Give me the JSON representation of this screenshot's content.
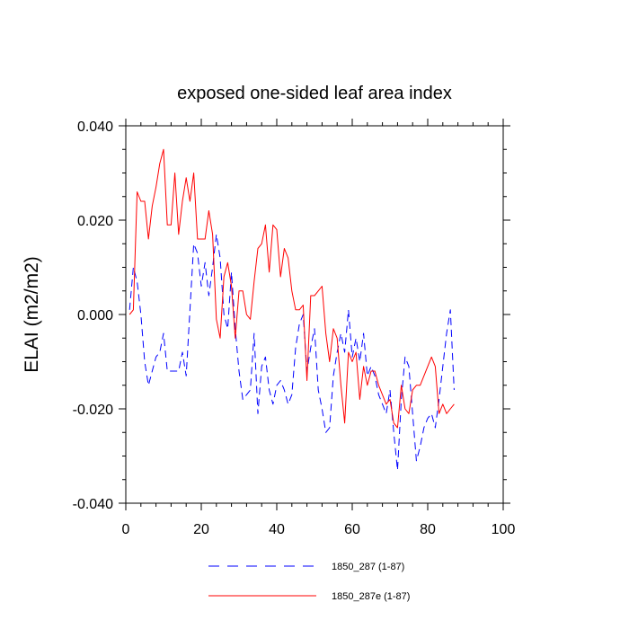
{
  "chart_data": {
    "type": "line",
    "title": "exposed one-sided leaf area index",
    "xlabel": "",
    "ylabel": "ELAI  (m2/m2)",
    "xlim": [
      0,
      100
    ],
    "ylim": [
      -0.04,
      0.04
    ],
    "xticks": [
      0,
      20,
      40,
      60,
      80,
      100
    ],
    "xtick_labels": [
      "0",
      "20",
      "40",
      "60",
      "80",
      "100"
    ],
    "yticks": [
      -0.04,
      -0.02,
      0.0,
      0.02,
      0.04
    ],
    "ytick_labels": [
      "-0.040",
      "-0.020",
      "0.000",
      "0.020",
      "0.040"
    ],
    "legend_position": "bottom-center",
    "series": [
      {
        "name": "1850_287 (1-87)",
        "color": "#0000ff",
        "style": "dashed",
        "x": [
          1,
          2,
          3,
          4,
          5,
          6,
          7,
          8,
          9,
          10,
          11,
          12,
          13,
          14,
          15,
          16,
          17,
          18,
          19,
          20,
          21,
          22,
          23,
          24,
          25,
          26,
          27,
          28,
          29,
          30,
          31,
          32,
          33,
          34,
          35,
          36,
          37,
          38,
          39,
          40,
          41,
          42,
          43,
          44,
          45,
          46,
          47,
          48,
          49,
          50,
          51,
          52,
          53,
          54,
          55,
          56,
          57,
          58,
          59,
          60,
          61,
          62,
          63,
          64,
          65,
          66,
          67,
          68,
          69,
          70,
          71,
          72,
          73,
          74,
          75,
          76,
          77,
          78,
          79,
          80,
          81,
          82,
          83,
          84,
          85,
          86,
          87
        ],
        "values": [
          0.001,
          0.01,
          0.007,
          0.0,
          -0.01,
          -0.015,
          -0.012,
          -0.009,
          -0.008,
          -0.004,
          -0.012,
          -0.012,
          -0.012,
          -0.012,
          -0.008,
          -0.013,
          0.001,
          0.015,
          0.013,
          0.006,
          0.011,
          0.004,
          0.01,
          0.017,
          0.012,
          0.0,
          -0.003,
          0.009,
          -0.003,
          -0.012,
          -0.018,
          -0.017,
          -0.016,
          -0.004,
          -0.021,
          -0.011,
          -0.009,
          -0.016,
          -0.019,
          -0.015,
          -0.014,
          -0.016,
          -0.019,
          -0.017,
          -0.007,
          -0.002,
          0.0,
          -0.012,
          -0.007,
          -0.003,
          -0.016,
          -0.02,
          -0.025,
          -0.024,
          -0.013,
          -0.008,
          -0.004,
          -0.008,
          0.001,
          -0.009,
          -0.005,
          -0.01,
          -0.004,
          -0.013,
          -0.011,
          -0.013,
          -0.017,
          -0.019,
          -0.021,
          -0.016,
          -0.025,
          -0.033,
          -0.018,
          -0.009,
          -0.011,
          -0.021,
          -0.031,
          -0.028,
          -0.024,
          -0.022,
          -0.021,
          -0.024,
          -0.018,
          -0.011,
          -0.004,
          0.001,
          -0.016
        ]
      },
      {
        "name": "1850_287e (1-87)",
        "color": "#ff0000",
        "style": "solid",
        "x": [
          1,
          2,
          3,
          4,
          5,
          6,
          7,
          8,
          9,
          10,
          11,
          12,
          13,
          14,
          15,
          16,
          17,
          18,
          19,
          20,
          21,
          22,
          23,
          24,
          25,
          26,
          27,
          28,
          29,
          30,
          31,
          32,
          33,
          34,
          35,
          36,
          37,
          38,
          39,
          40,
          41,
          42,
          43,
          44,
          45,
          46,
          47,
          48,
          49,
          50,
          51,
          52,
          53,
          54,
          55,
          56,
          57,
          58,
          59,
          60,
          61,
          62,
          63,
          64,
          65,
          66,
          67,
          68,
          69,
          70,
          71,
          72,
          73,
          74,
          75,
          76,
          77,
          78,
          79,
          80,
          81,
          82,
          83,
          84,
          85,
          86,
          87
        ],
        "values": [
          0.0,
          0.001,
          0.026,
          0.024,
          0.024,
          0.016,
          0.023,
          0.027,
          0.032,
          0.035,
          0.019,
          0.019,
          0.03,
          0.017,
          0.024,
          0.029,
          0.024,
          0.03,
          0.016,
          0.016,
          0.016,
          0.022,
          0.017,
          -0.001,
          -0.005,
          0.008,
          0.011,
          0.006,
          -0.005,
          0.005,
          0.005,
          0.0,
          -0.001,
          0.007,
          0.014,
          0.015,
          0.019,
          0.009,
          0.019,
          0.018,
          0.008,
          0.014,
          0.012,
          0.005,
          0.001,
          0.001,
          0.002,
          -0.014,
          0.004,
          0.004,
          0.005,
          0.006,
          -0.004,
          -0.01,
          -0.003,
          -0.005,
          -0.015,
          -0.023,
          -0.008,
          -0.01,
          -0.008,
          -0.018,
          -0.011,
          -0.015,
          -0.012,
          -0.012,
          -0.015,
          -0.017,
          -0.019,
          -0.018,
          -0.023,
          -0.024,
          -0.015,
          -0.02,
          -0.021,
          -0.016,
          -0.015,
          -0.015,
          -0.013,
          -0.011,
          -0.009,
          -0.011,
          -0.021,
          -0.019,
          -0.021,
          -0.02,
          -0.019
        ]
      }
    ]
  }
}
